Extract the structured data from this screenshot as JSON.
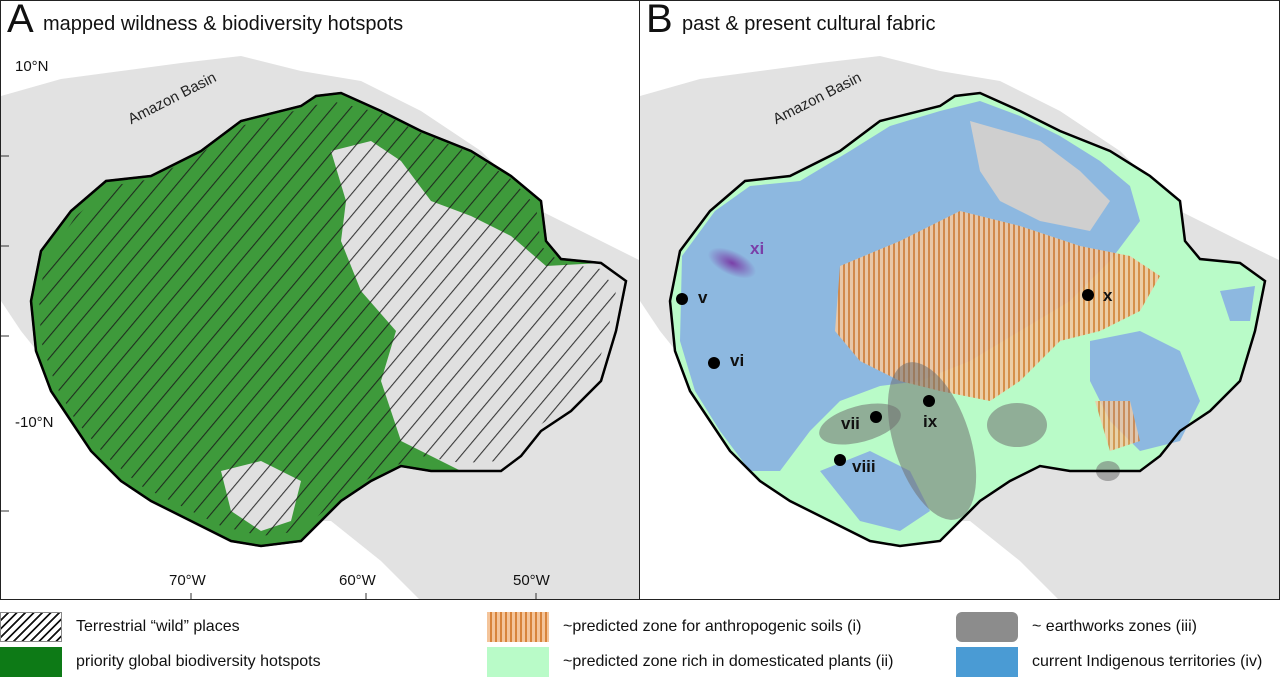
{
  "panel_a": {
    "letter": "A",
    "title": "mapped wildness & biodiversity hotspots",
    "basin_label": "Amazon Basin",
    "lat_labels": [
      "10°N",
      "-10°N"
    ],
    "lon_labels": [
      "70°W",
      "60°W",
      "50°W"
    ]
  },
  "panel_b": {
    "letter": "B",
    "title": "past & present cultural fabric",
    "basin_label": "Amazon Basin",
    "sites": [
      "v",
      "vi",
      "vii",
      "viii",
      "ix",
      "x",
      "xi"
    ]
  },
  "legend": {
    "wild": "Terrestrial “wild” places",
    "hotspots": "priority global biodiversity hotspots",
    "soils": "~predicted zone for anthropogenic soils (i)",
    "domesticated": "~predicted zone rich in domesticated plants (ii)",
    "earthworks": "~ earthworks zones (iii)",
    "indigenous": "current Indigenous territories (iv)"
  },
  "colors": {
    "hotspot_green": "#3e9a3b",
    "land_gray": "#e0e0e0",
    "indigenous_blue": "#8db8e0",
    "domesticated_green": "#b9fbc8",
    "soil_orange": "#d8843c",
    "earthworks_gray": "#707070",
    "site_xi_purple": "#7a3fa8"
  }
}
